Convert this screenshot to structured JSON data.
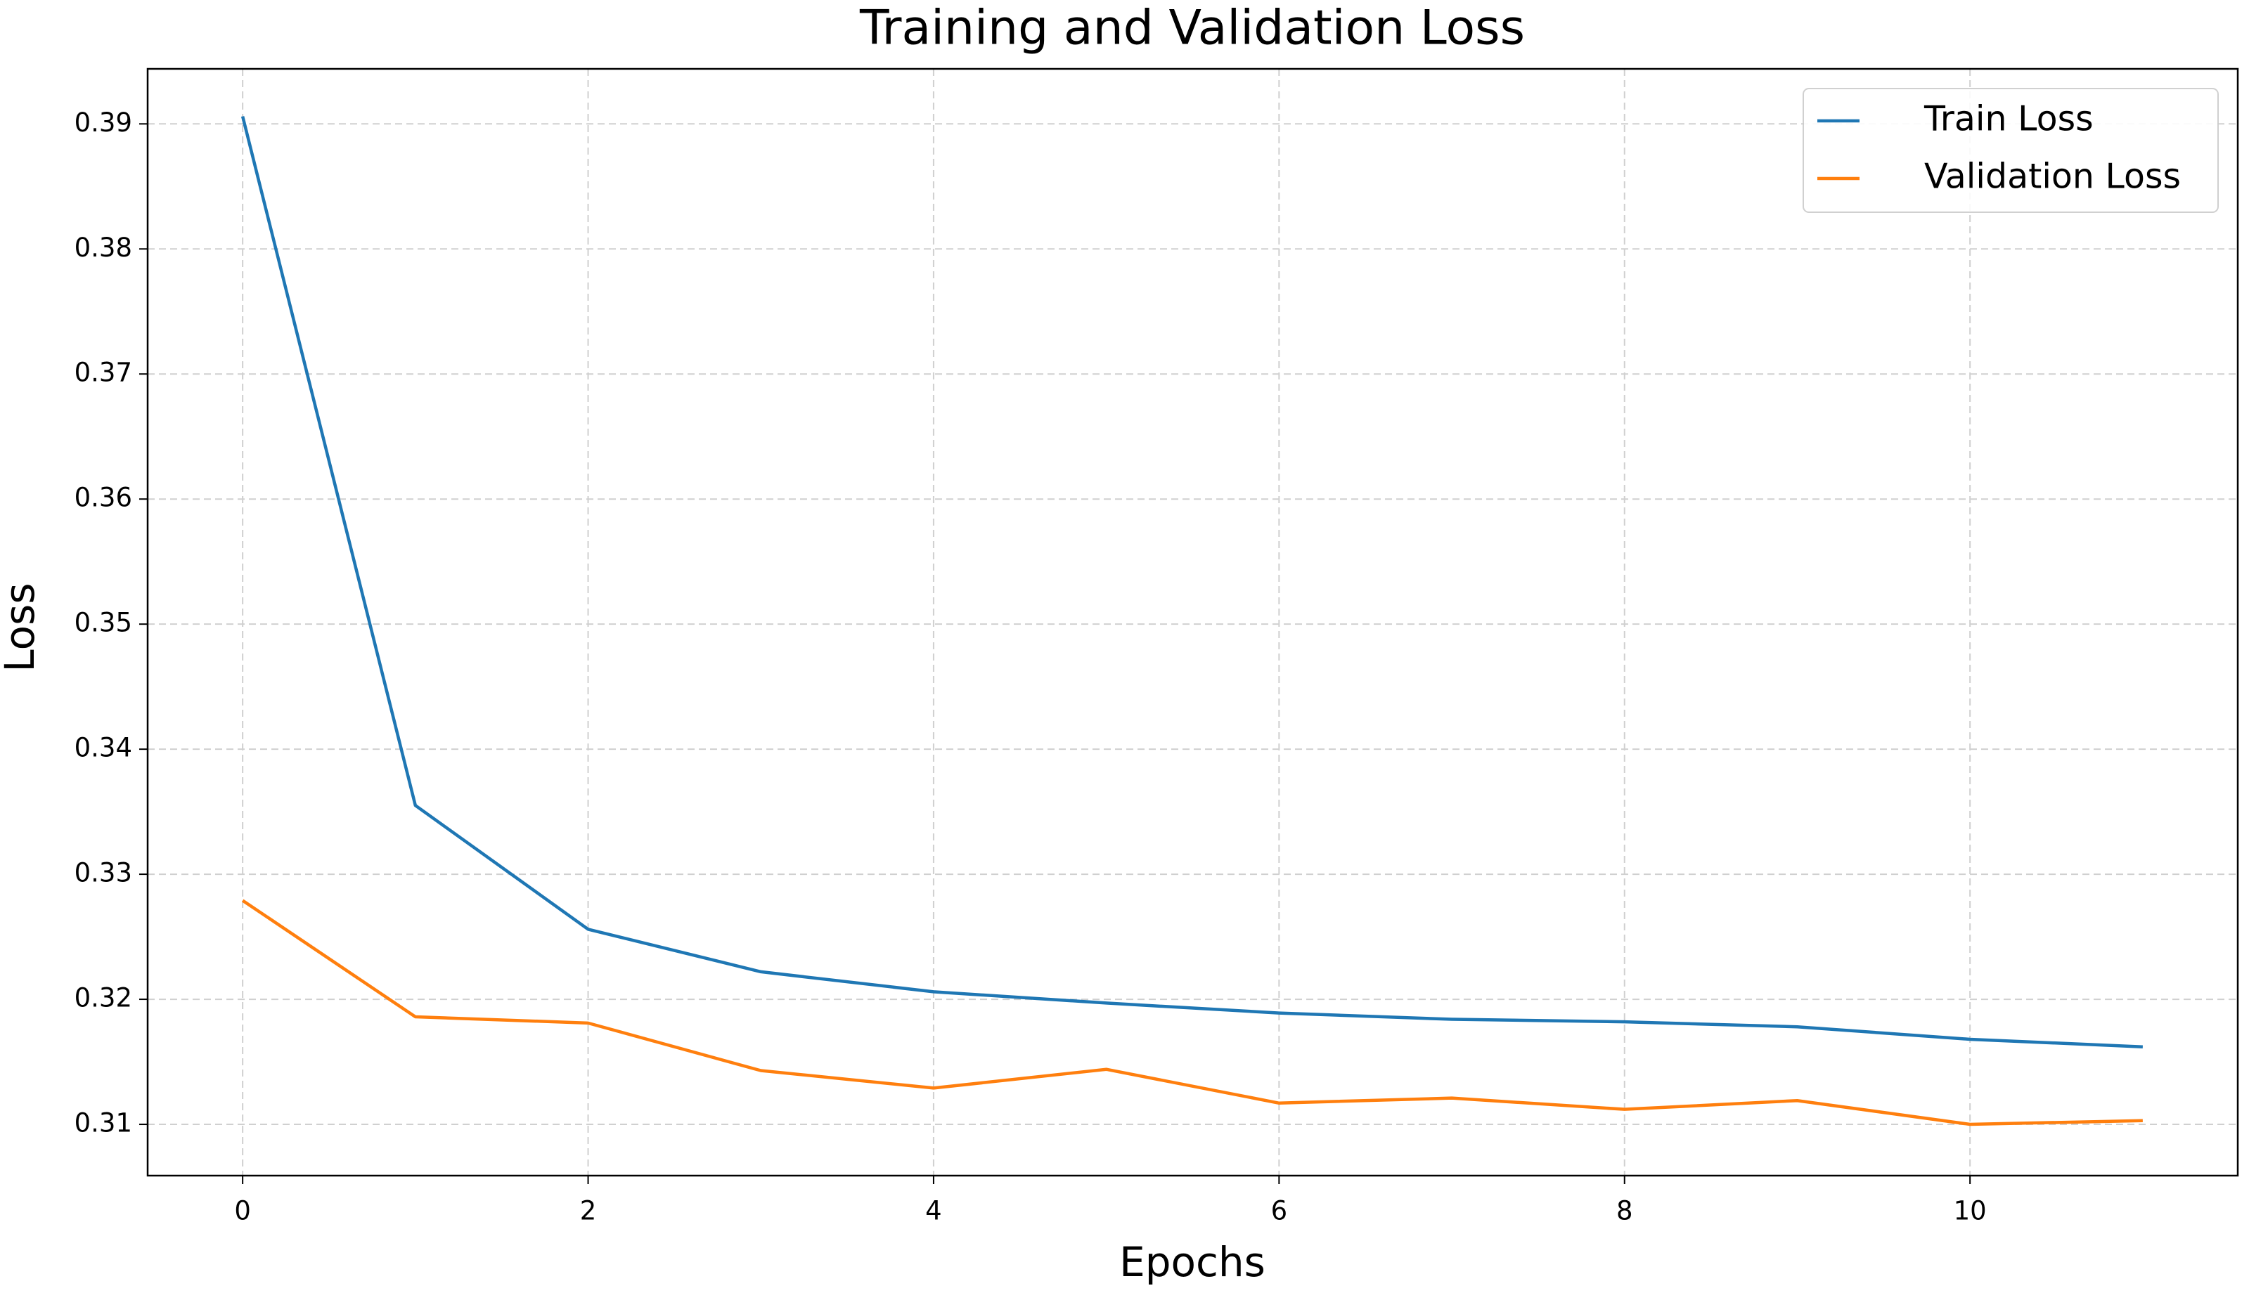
{
  "chart_data": {
    "type": "line",
    "title": "Training and Validation Loss",
    "x_label": "Epochs",
    "y_label": "Loss",
    "x": [
      0,
      1,
      2,
      3,
      4,
      5,
      6,
      7,
      8,
      9,
      10,
      11
    ],
    "series": [
      {
        "name": "Train Loss",
        "color": "#1f77b4",
        "values": [
          0.3906,
          0.3355,
          0.3256,
          0.3222,
          0.3206,
          0.3197,
          0.3189,
          0.3184,
          0.3182,
          0.3178,
          0.3168,
          0.3162
        ]
      },
      {
        "name": "Validation Loss",
        "color": "#ff7f0e",
        "values": [
          0.3279,
          0.3186,
          0.3181,
          0.3143,
          0.3129,
          0.3144,
          0.3117,
          0.3121,
          0.3112,
          0.3119,
          0.31,
          0.3103
        ]
      }
    ],
    "xlim": [
      -0.55,
      11.55
    ],
    "xticks": [
      0,
      2,
      4,
      6,
      8,
      10
    ],
    "ylim": [
      0.3059,
      0.3944
    ],
    "yticks": [
      0.31,
      0.32,
      0.33,
      0.34,
      0.35,
      0.36,
      0.37,
      0.38,
      0.39
    ],
    "grid": true,
    "legend": "upper right"
  }
}
